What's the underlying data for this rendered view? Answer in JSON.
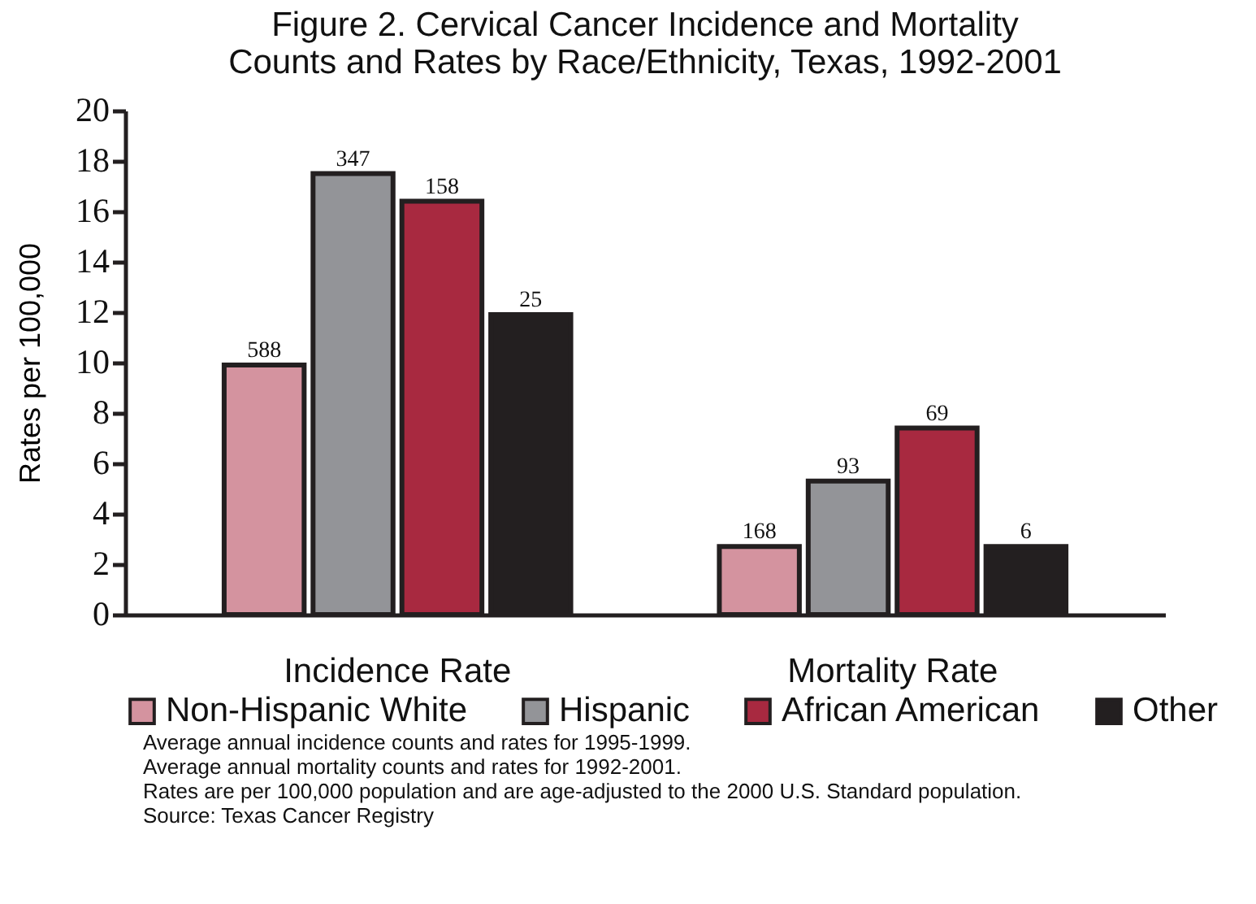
{
  "chart_data": {
    "type": "bar",
    "title": "Figure 2. Cervical Cancer Incidence and Mortality\nCounts and Rates by Race/Ethnicity, Texas, 1992-2001",
    "ylabel": "Rates per 100,000",
    "categories": [
      "Incidence Rate",
      "Mortality Rate"
    ],
    "series": [
      {
        "name": "Non-Hispanic White",
        "color": "#d4939f",
        "values": [
          9.9,
          2.7
        ]
      },
      {
        "name": "Hispanic",
        "color": "#939498",
        "values": [
          17.5,
          5.3
        ]
      },
      {
        "name": "African American",
        "color": "#a82940",
        "values": [
          16.4,
          7.4
        ]
      },
      {
        "name": "Other",
        "color": "#231f20",
        "values": [
          11.9,
          2.7
        ]
      }
    ],
    "ylim": [
      0,
      20
    ],
    "yticks": [
      0,
      2,
      4,
      6,
      8,
      10,
      12,
      14,
      16,
      18,
      20
    ],
    "legend": "bottom",
    "annotations": [
      {
        "text": "588",
        "y": 9.9
      },
      {
        "text": "347",
        "y": 17.5
      },
      {
        "text": "158",
        "y": 16.4
      },
      {
        "text": "25",
        "y": 11.9
      },
      {
        "text": "168",
        "y": 2.7
      },
      {
        "text": "93",
        "y": 5.3
      },
      {
        "text": "69",
        "y": 7.4
      },
      {
        "text": "6",
        "y": 2.7
      },
      "Average annual incidence counts and rates for 1995-1999.",
      "Average annual mortality counts and rates for 1992-2001.",
      "Rates are per 100,000 population and are age-adjusted to the 2000 U.S. Standard population.",
      "Source: Texas Cancer Registry"
    ]
  }
}
